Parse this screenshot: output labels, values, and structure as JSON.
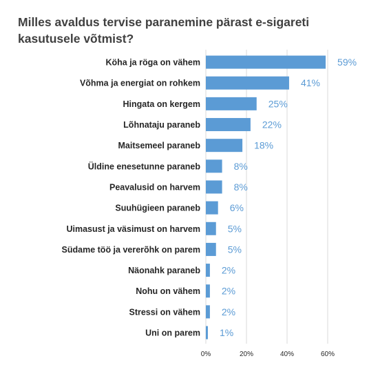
{
  "chart_data": {
    "type": "bar",
    "orientation": "horizontal",
    "title": "Milles avaldus tervise paranemine pärast e-sigareti kasutusele võtmist?",
    "categories": [
      "Köha ja röga on vähem",
      "Võhma ja energiat on rohkem",
      "Hingata on kergem",
      "Lõhnataju paraneb",
      "Maitsemeel paraneb",
      "Üldine enesetunne paraneb",
      "Peavalusid on harvem",
      "Suuhügieen paraneb",
      "Uimasust ja väsimust on harvem",
      "Südame töö ja vererõhk on parem",
      "Näonahk paraneb",
      "Nohu on vähem",
      "Stressi on vähem",
      "Uni on parem"
    ],
    "values": [
      59,
      41,
      25,
      22,
      18,
      8,
      8,
      6,
      5,
      5,
      2,
      2,
      2,
      1
    ],
    "value_labels": [
      "59%",
      "41%",
      "25%",
      "22%",
      "18%",
      "8%",
      "8%",
      "6%",
      "5%",
      "5%",
      "2%",
      "2%",
      "2%",
      "1%"
    ],
    "xlim": [
      0,
      60
    ],
    "x_ticks": [
      "0%",
      "20%",
      "40%",
      "60%"
    ],
    "grid": true,
    "bar_color": "#5b9bd5",
    "gridline_color": "#d9d9d9"
  }
}
